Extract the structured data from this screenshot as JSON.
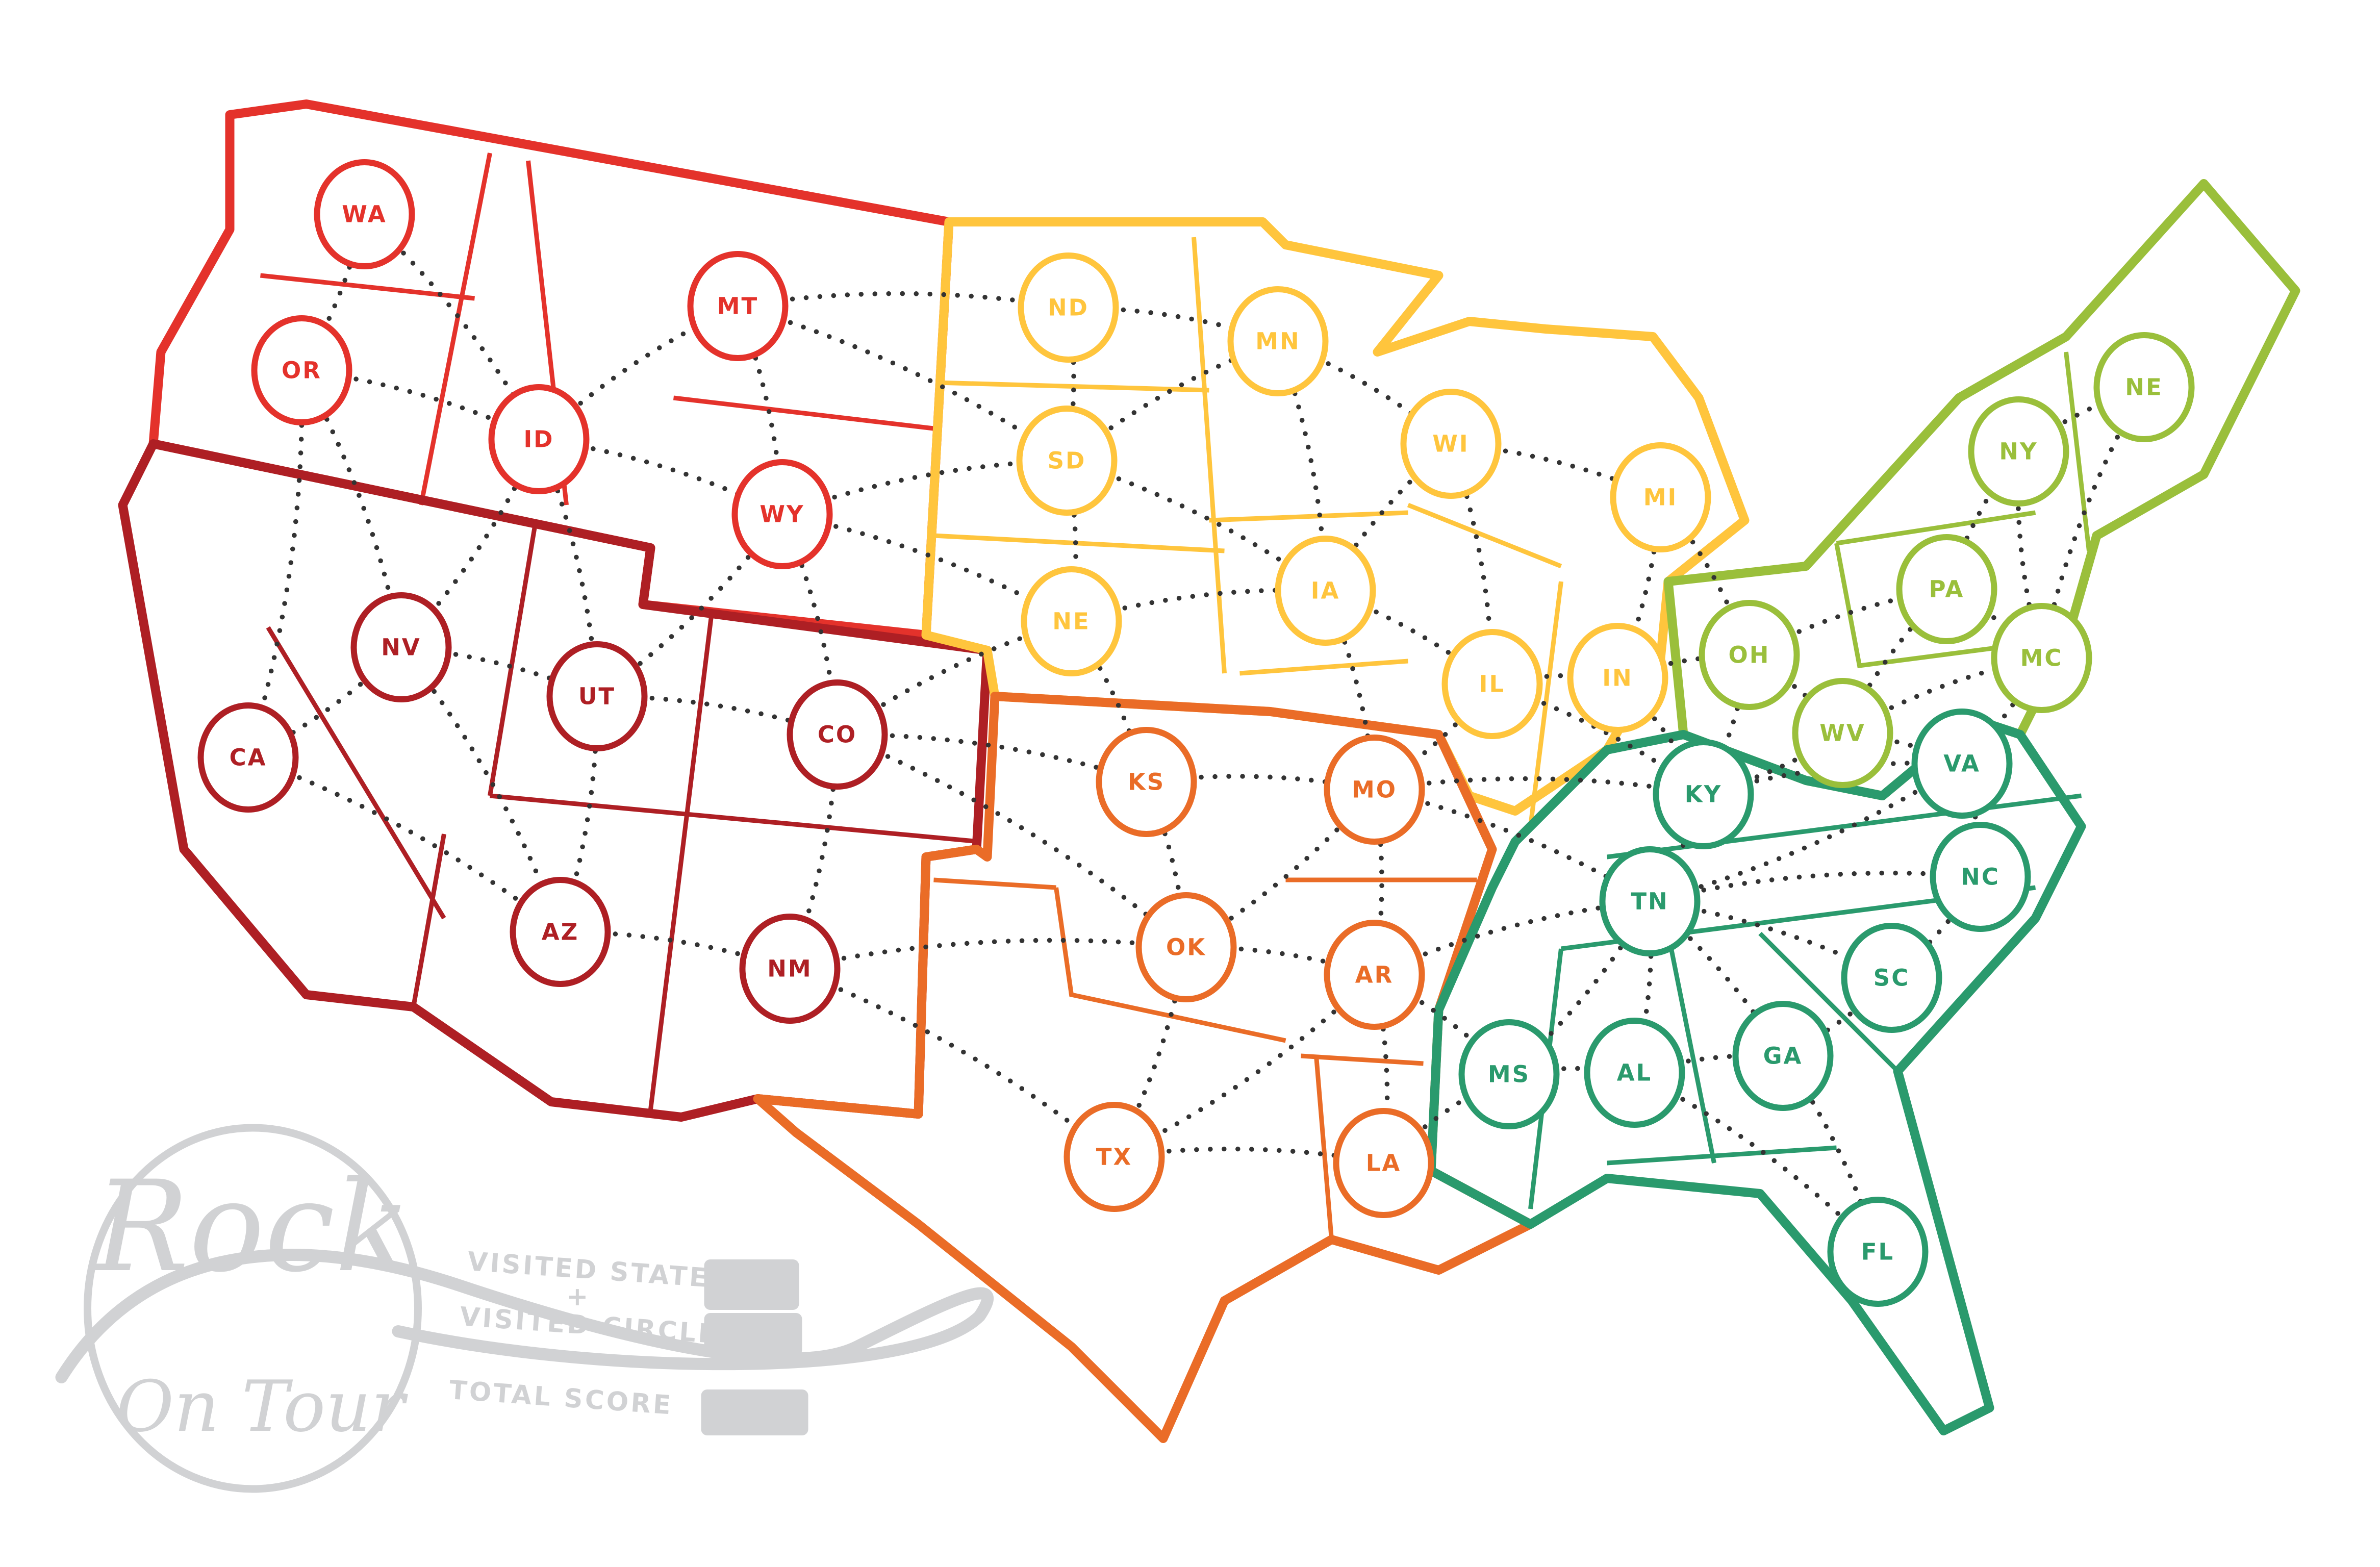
{
  "colors": {
    "northwest": "#E4322B",
    "southwest": "#AE1F24",
    "midwest": "#FFC53D",
    "south_central": "#EA6C27",
    "northeast": "#9ABF3B",
    "southeast": "#2A9A6D",
    "logo_gray": "#D1D2D4",
    "route_dots": "#333333"
  },
  "states": [
    {
      "abbr": "WA",
      "region": "northwest"
    },
    {
      "abbr": "OR",
      "region": "northwest"
    },
    {
      "abbr": "ID",
      "region": "northwest"
    },
    {
      "abbr": "MT",
      "region": "northwest"
    },
    {
      "abbr": "WY",
      "region": "northwest"
    },
    {
      "abbr": "NV",
      "region": "southwest"
    },
    {
      "abbr": "UT",
      "region": "southwest"
    },
    {
      "abbr": "CO",
      "region": "southwest"
    },
    {
      "abbr": "CA",
      "region": "southwest"
    },
    {
      "abbr": "AZ",
      "region": "southwest"
    },
    {
      "abbr": "NM",
      "region": "southwest"
    },
    {
      "abbr": "ND",
      "region": "midwest"
    },
    {
      "abbr": "SD",
      "region": "midwest"
    },
    {
      "abbr": "NE",
      "region": "midwest"
    },
    {
      "abbr": "MN",
      "region": "midwest"
    },
    {
      "abbr": "IA",
      "region": "midwest"
    },
    {
      "abbr": "WI",
      "region": "midwest"
    },
    {
      "abbr": "MI",
      "region": "midwest"
    },
    {
      "abbr": "IL",
      "region": "midwest"
    },
    {
      "abbr": "IN",
      "region": "midwest"
    },
    {
      "abbr": "KS",
      "region": "south_central"
    },
    {
      "abbr": "MO",
      "region": "south_central"
    },
    {
      "abbr": "OK",
      "region": "south_central"
    },
    {
      "abbr": "AR",
      "region": "south_central"
    },
    {
      "abbr": "TX",
      "region": "south_central"
    },
    {
      "abbr": "LA",
      "region": "south_central"
    },
    {
      "abbr": "OH",
      "region": "northeast"
    },
    {
      "abbr": "WV",
      "region": "northeast"
    },
    {
      "abbr": "PA",
      "region": "northeast"
    },
    {
      "abbr": "MC",
      "region": "northeast"
    },
    {
      "abbr": "NY",
      "region": "northeast"
    },
    {
      "abbr": "NE",
      "region": "northeast"
    },
    {
      "abbr": "KY",
      "region": "southeast"
    },
    {
      "abbr": "VA",
      "region": "southeast"
    },
    {
      "abbr": "TN",
      "region": "southeast"
    },
    {
      "abbr": "NC",
      "region": "southeast"
    },
    {
      "abbr": "SC",
      "region": "southeast"
    },
    {
      "abbr": "MS",
      "region": "southeast"
    },
    {
      "abbr": "AL",
      "region": "southeast"
    },
    {
      "abbr": "GA",
      "region": "southeast"
    },
    {
      "abbr": "FL",
      "region": "southeast"
    }
  ],
  "logo": {
    "line1": "Rock",
    "line2": "On Tour"
  },
  "scorecard": {
    "visited_states": "VISITED STATES",
    "plus": "+",
    "visited_circles": "VISITED CIRCLES",
    "total_score": "TOTAL SCORE"
  }
}
